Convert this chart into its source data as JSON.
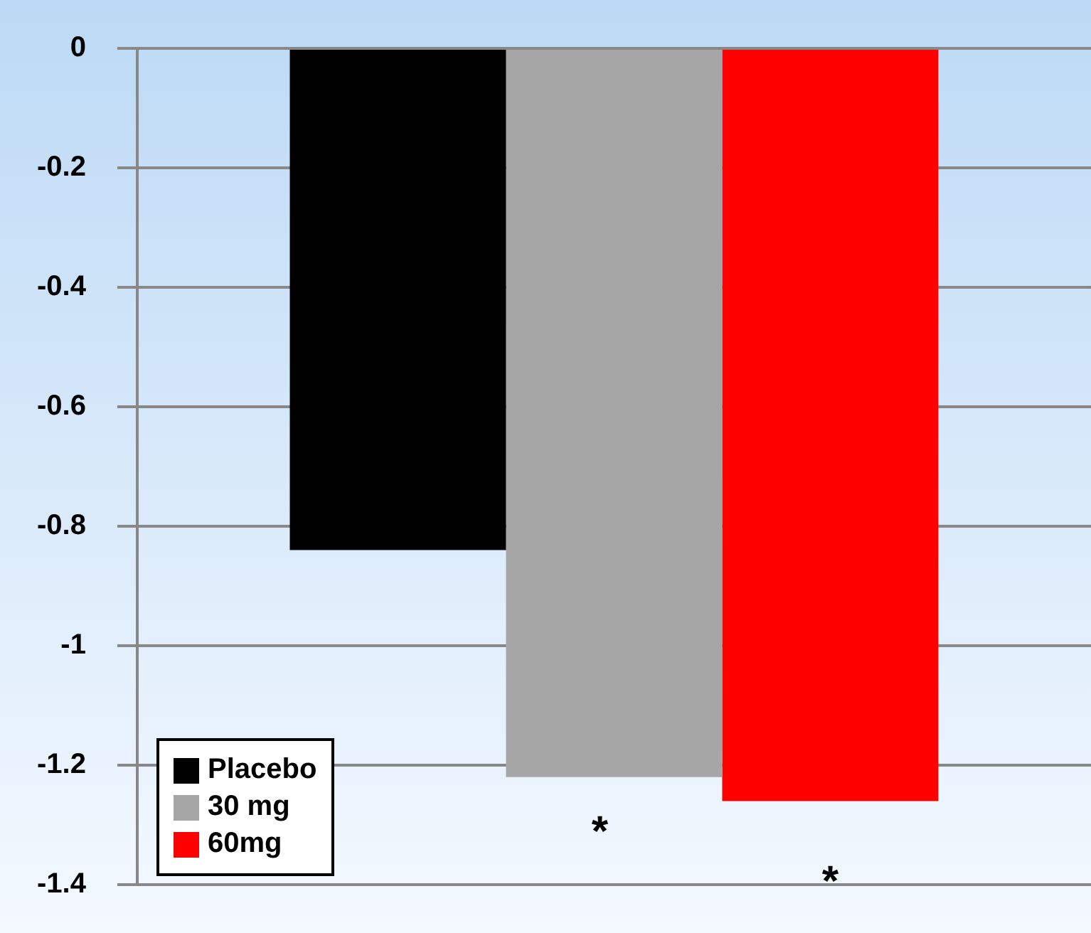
{
  "chart_data": {
    "type": "bar",
    "categories": [
      null
    ],
    "series": [
      {
        "name": "Placebo",
        "color": "#000000",
        "values": [
          -0.84
        ]
      },
      {
        "name": "30 mg",
        "color": "#a6a6a6",
        "values": [
          -1.22
        ]
      },
      {
        "name": "60mg",
        "color": "#ff0000",
        "values": [
          -1.26
        ]
      }
    ],
    "ylim": [
      -1.4,
      0
    ],
    "yticks": [
      0,
      -0.2,
      -0.4,
      -0.6,
      -0.8,
      -1,
      -1.2,
      -1.4
    ],
    "grid": "y",
    "legend": "bottom left",
    "annotations": [
      "*",
      "*"
    ]
  }
}
